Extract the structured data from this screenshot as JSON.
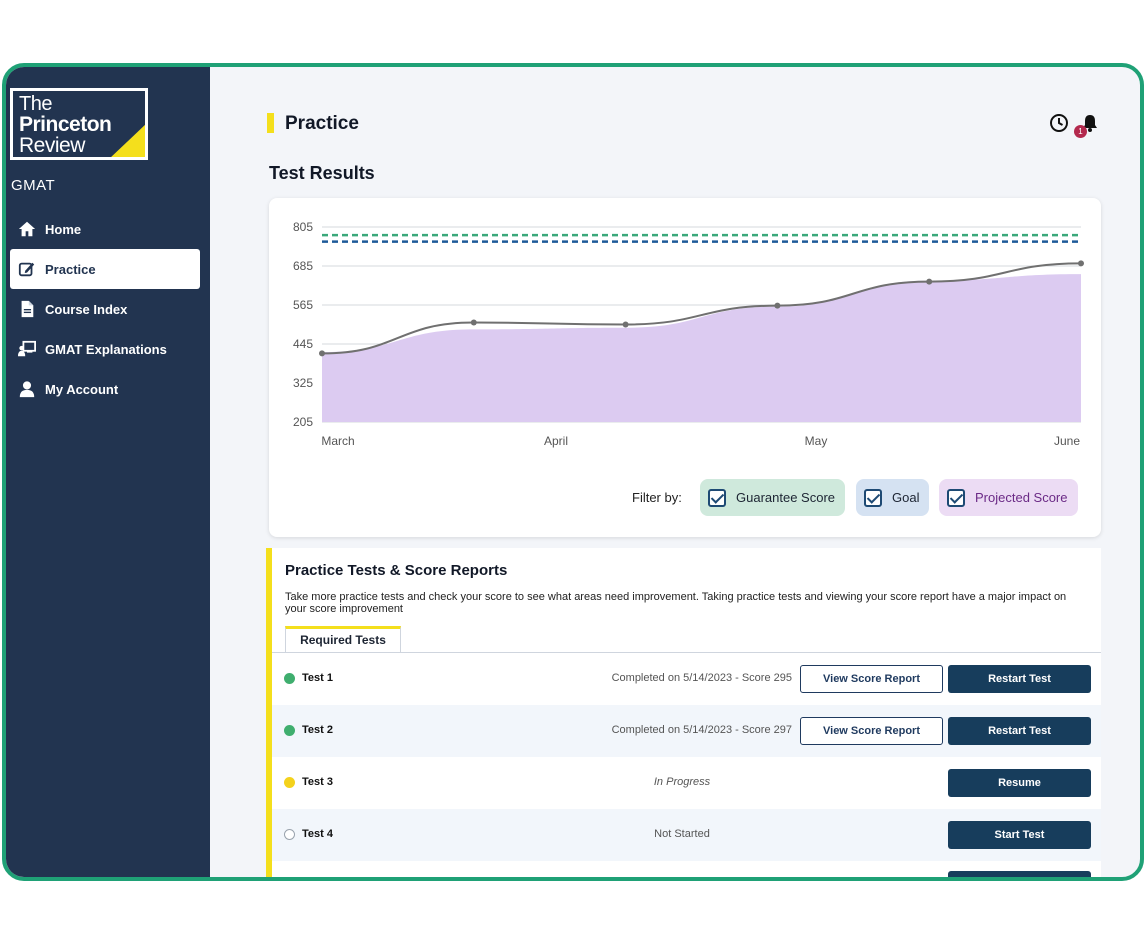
{
  "brand": {
    "logo_line1": "The",
    "logo_line2": "Princeton",
    "logo_line3": "Review",
    "product": "GMAT"
  },
  "sidebar": {
    "items": [
      {
        "label": "Home",
        "icon": "home-icon"
      },
      {
        "label": "Practice",
        "icon": "edit-icon",
        "active": true
      },
      {
        "label": "Course Index",
        "icon": "document-icon"
      },
      {
        "label": "GMAT Explanations",
        "icon": "presentation-icon"
      },
      {
        "label": "My Account",
        "icon": "user-icon"
      }
    ]
  },
  "header": {
    "title": "Practice",
    "history_icon": "clock-icon",
    "notifications_icon": "bell-icon",
    "notification_count": "1"
  },
  "results": {
    "title": "Test Results",
    "filter_label": "Filter by:",
    "filters": [
      {
        "label": "Guarantee Score",
        "checked": true,
        "color": "#cfe9dc"
      },
      {
        "label": "Goal",
        "checked": true,
        "color": "#d5e2f2"
      },
      {
        "label": "Projected Score",
        "checked": true,
        "color": "#ecdcf4"
      }
    ]
  },
  "chart_data": {
    "type": "line",
    "y_ticks": [
      "805",
      "685",
      "565",
      "445",
      "325",
      "205"
    ],
    "ylim": [
      205,
      805
    ],
    "x_labels": [
      "March",
      "April",
      "May",
      "June"
    ],
    "series": [
      {
        "name": "Guarantee Score",
        "style": "dashed",
        "color": "#3aa87a",
        "values": [
          780,
          780,
          780,
          780,
          780,
          780
        ]
      },
      {
        "name": "Goal",
        "style": "dashed",
        "color": "#1e5b99",
        "values": [
          760,
          760,
          760,
          760,
          760,
          760
        ]
      },
      {
        "name": "Projected Score",
        "style": "area",
        "color": "#dccbf1",
        "values": [
          420,
          490,
          495,
          560,
          640,
          660
        ]
      },
      {
        "name": "Score",
        "style": "line",
        "color": "#707070",
        "values": [
          416,
          511,
          505,
          563,
          637,
          693
        ]
      }
    ]
  },
  "practice": {
    "title": "Practice Tests & Score Reports",
    "description": "Take more practice tests and check your score to see what areas need improvement. Taking practice tests and viewing your score report have a major impact on your score improvement",
    "tab_label": "Required Tests",
    "tests": [
      {
        "name": "Test 1",
        "status": "completed",
        "info": "Completed on 5/14/2023 - Score 295",
        "secondary": "View Score Report",
        "primary": "Restart Test"
      },
      {
        "name": "Test 2",
        "status": "completed",
        "info": "Completed on 5/14/2023 - Score 297",
        "secondary": "View Score Report",
        "primary": "Restart Test"
      },
      {
        "name": "Test 3",
        "status": "in-progress",
        "info": "In Progress",
        "primary": "Resume"
      },
      {
        "name": "Test 4",
        "status": "not-started",
        "info": "Not Started",
        "primary": "Start Test"
      }
    ]
  },
  "colors": {
    "sidebar": "#223450",
    "accent_yellow": "#f4df1c",
    "frame_green": "#1fa176",
    "button_navy": "#173d5c"
  }
}
